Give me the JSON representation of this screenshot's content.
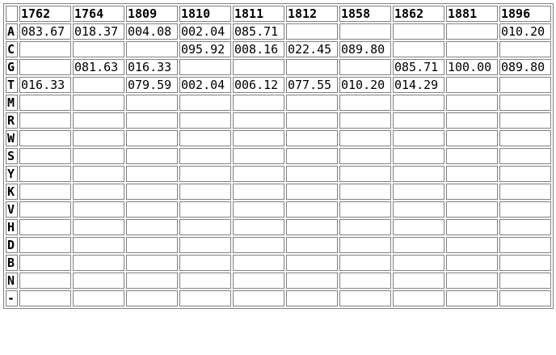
{
  "table": {
    "columns": [
      "1762",
      "1764",
      "1809",
      "1810",
      "1811",
      "1812",
      "1858",
      "1862",
      "1881",
      "1896"
    ],
    "rows": [
      {
        "label": "A",
        "cells": [
          "083.67",
          "018.37",
          "004.08",
          "002.04",
          "085.71",
          "",
          "",
          "",
          "",
          "010.20"
        ]
      },
      {
        "label": "C",
        "cells": [
          "",
          "",
          "",
          "095.92",
          "008.16",
          "022.45",
          "089.80",
          "",
          "",
          ""
        ]
      },
      {
        "label": "G",
        "cells": [
          "",
          "081.63",
          "016.33",
          "",
          "",
          "",
          "",
          "085.71",
          "100.00",
          "089.80"
        ]
      },
      {
        "label": "T",
        "cells": [
          "016.33",
          "",
          "079.59",
          "002.04",
          "006.12",
          "077.55",
          "010.20",
          "014.29",
          "",
          ""
        ]
      },
      {
        "label": "M",
        "cells": [
          "",
          "",
          "",
          "",
          "",
          "",
          "",
          "",
          "",
          ""
        ]
      },
      {
        "label": "R",
        "cells": [
          "",
          "",
          "",
          "",
          "",
          "",
          "",
          "",
          "",
          ""
        ]
      },
      {
        "label": "W",
        "cells": [
          "",
          "",
          "",
          "",
          "",
          "",
          "",
          "",
          "",
          ""
        ]
      },
      {
        "label": "S",
        "cells": [
          "",
          "",
          "",
          "",
          "",
          "",
          "",
          "",
          "",
          ""
        ]
      },
      {
        "label": "Y",
        "cells": [
          "",
          "",
          "",
          "",
          "",
          "",
          "",
          "",
          "",
          ""
        ]
      },
      {
        "label": "K",
        "cells": [
          "",
          "",
          "",
          "",
          "",
          "",
          "",
          "",
          "",
          ""
        ]
      },
      {
        "label": "V",
        "cells": [
          "",
          "",
          "",
          "",
          "",
          "",
          "",
          "",
          "",
          ""
        ]
      },
      {
        "label": "H",
        "cells": [
          "",
          "",
          "",
          "",
          "",
          "",
          "",
          "",
          "",
          ""
        ]
      },
      {
        "label": "D",
        "cells": [
          "",
          "",
          "",
          "",
          "",
          "",
          "",
          "",
          "",
          ""
        ]
      },
      {
        "label": "B",
        "cells": [
          "",
          "",
          "",
          "",
          "",
          "",
          "",
          "",
          "",
          ""
        ]
      },
      {
        "label": "N",
        "cells": [
          "",
          "",
          "",
          "",
          "",
          "",
          "",
          "",
          "",
          ""
        ]
      },
      {
        "label": "-",
        "cells": [
          "",
          "",
          "",
          "",
          "",
          "",
          "",
          "",
          "",
          ""
        ]
      }
    ]
  }
}
